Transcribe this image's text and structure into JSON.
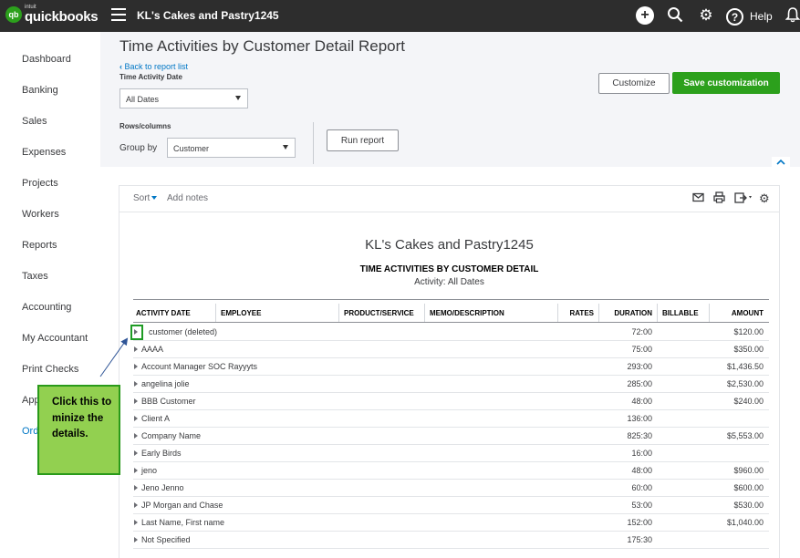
{
  "topbar": {
    "brand_small": "intuit",
    "brand": "quickbooks",
    "logo_text": "qb",
    "company": "KL's Cakes and Pastry1245",
    "help_label": "Help",
    "icons": [
      "plus-icon",
      "search-icon",
      "gear-icon",
      "help-icon",
      "bell-icon"
    ]
  },
  "sidebar": {
    "items": [
      {
        "label": "Dashboard"
      },
      {
        "label": "Banking"
      },
      {
        "label": "Sales"
      },
      {
        "label": "Expenses"
      },
      {
        "label": "Projects"
      },
      {
        "label": "Workers"
      },
      {
        "label": "Reports"
      },
      {
        "label": "Taxes"
      },
      {
        "label": "Accounting"
      },
      {
        "label": "My Accountant"
      },
      {
        "label": "Print Checks"
      },
      {
        "label": "Apps"
      },
      {
        "label": "Order Checks"
      }
    ]
  },
  "header": {
    "title": "Time Activities by Customer Detail Report",
    "back_link": "Back to report list",
    "time_activity_label": "Time Activity Date",
    "date_value": "All Dates",
    "rows_columns_label": "Rows/columns",
    "group_by_label": "Group by",
    "group_by_value": "Customer",
    "run_report": "Run report",
    "customize": "Customize",
    "save_customization": "Save customization"
  },
  "report_toolbar": {
    "sort": "Sort",
    "add_notes": "Add notes",
    "icons": [
      "email-icon",
      "print-icon",
      "export-icon",
      "settings-icon"
    ]
  },
  "report": {
    "company": "KL's Cakes and Pastry1245",
    "title": "TIME ACTIVITIES BY CUSTOMER DETAIL",
    "subtitle": "Activity: All Dates",
    "columns": [
      "ACTIVITY DATE",
      "EMPLOYEE",
      "PRODUCT/SERVICE",
      "MEMO/DESCRIPTION",
      "RATES",
      "DURATION",
      "BILLABLE",
      "AMOUNT"
    ],
    "rows": [
      {
        "name": "customer (deleted)",
        "duration": "72:00",
        "amount": "$120.00"
      },
      {
        "name": "AAAA",
        "duration": "75:00",
        "amount": "$350.00"
      },
      {
        "name": "Account Manager SOC Rayyyts",
        "duration": "293:00",
        "amount": "$1,436.50"
      },
      {
        "name": "angelina jolie",
        "duration": "285:00",
        "amount": "$2,530.00"
      },
      {
        "name": "BBB Customer",
        "duration": "48:00",
        "amount": "$240.00"
      },
      {
        "name": "Client A",
        "duration": "136:00",
        "amount": ""
      },
      {
        "name": "Company Name",
        "duration": "825:30",
        "amount": "$5,553.00"
      },
      {
        "name": "Early Birds",
        "duration": "16:00",
        "amount": ""
      },
      {
        "name": "jeno",
        "duration": "48:00",
        "amount": "$960.00"
      },
      {
        "name": "Jeno Jenno",
        "duration": "60:00",
        "amount": "$600.00"
      },
      {
        "name": "JP Morgan and Chase",
        "duration": "53:00",
        "amount": "$530.00"
      },
      {
        "name": "Last Name, First name",
        "duration": "152:00",
        "amount": "$1,040.00"
      },
      {
        "name": "Not Specified",
        "duration": "175:30",
        "amount": ""
      }
    ]
  },
  "callout": {
    "text": "Click this to minize the details."
  },
  "colors": {
    "topbar": "#2d2d2d",
    "green": "#2ca01c",
    "link": "#0077c5",
    "callout_fill": "#92d050"
  }
}
